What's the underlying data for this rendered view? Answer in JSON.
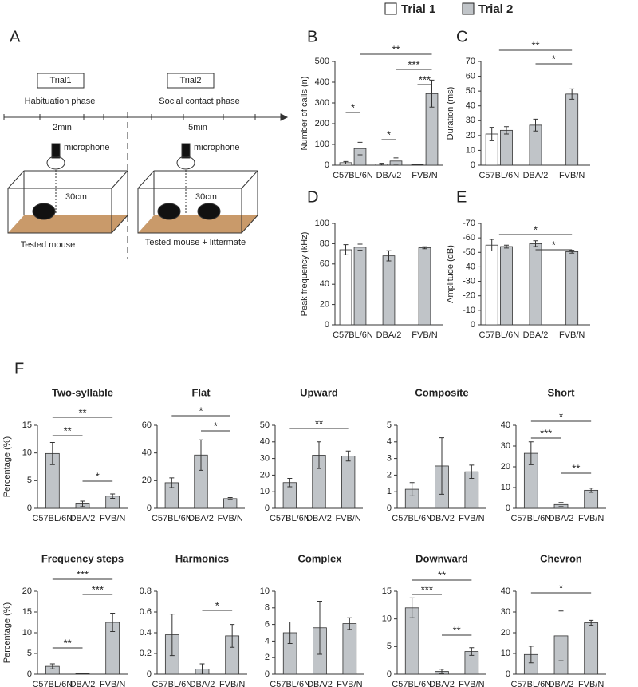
{
  "panel_a": {
    "letter": "A",
    "trial_1": "Trial1",
    "trial_2": "Trial2",
    "phase_1": "Habituation phase",
    "phase_2": "Social contact phase",
    "time_1": "2min",
    "time_2": "5min",
    "mic_1": "microphone",
    "mic_2": "microphone",
    "distance_1": "30cm",
    "distance_2": "30cm",
    "caption_1": "Tested mouse",
    "caption_2": "Tested mouse + littermate"
  },
  "panel_f": "F",
  "chart_data": [
    {
      "type": "bar",
      "panel": "B",
      "y_label": "Number of calls (n)",
      "categories": [
        "C57BL/6N",
        "DBA/2",
        "FVB/N"
      ],
      "series": [
        {
          "name": "Trial 1",
          "color": "#ffffff",
          "values": [
            12,
            5,
            3
          ],
          "errors": [
            6,
            4,
            2
          ]
        },
        {
          "name": "Trial 2",
          "color": "#c0c4c8",
          "values": [
            80,
            20,
            345
          ],
          "errors": [
            30,
            15,
            65
          ]
        }
      ],
      "ylim": [
        0,
        500
      ],
      "yticks": [
        0,
        100,
        200,
        300,
        400,
        500
      ],
      "annotations": [
        "**",
        "***",
        "***",
        "*",
        "*"
      ]
    },
    {
      "type": "bar",
      "panel": "C",
      "y_label": "Duration (ms)",
      "categories": [
        "C57BL/6N",
        "DBA/2",
        "FVB/N"
      ],
      "series": [
        {
          "name": "Trial 1",
          "color": "#ffffff",
          "values": [
            21,
            null,
            null
          ],
          "errors": [
            4.5,
            null,
            null
          ]
        },
        {
          "name": "Trial 2",
          "color": "#c0c4c8",
          "values": [
            23.5,
            27,
            48
          ],
          "errors": [
            2.5,
            4,
            3.5
          ]
        }
      ],
      "ylim": [
        0,
        70
      ],
      "yticks": [
        0,
        10,
        20,
        30,
        40,
        50,
        60,
        70
      ],
      "annotations": [
        "**",
        "*"
      ]
    },
    {
      "type": "bar",
      "panel": "D",
      "y_label": "Peak frequency (kHz)",
      "categories": [
        "C57BL/6N",
        "DBA/2",
        "FVB/N"
      ],
      "series": [
        {
          "name": "Trial 1",
          "color": "#ffffff",
          "values": [
            74,
            null,
            null
          ],
          "errors": [
            5,
            null,
            null
          ]
        },
        {
          "name": "Trial 2",
          "color": "#c0c4c8",
          "values": [
            76.5,
            68,
            76
          ],
          "errors": [
            3,
            5,
            1
          ]
        }
      ],
      "ylim": [
        0,
        100
      ],
      "yticks": [
        0,
        20,
        40,
        60,
        80,
        100
      ]
    },
    {
      "type": "bar",
      "panel": "E",
      "y_label": "Amplitude (dB)",
      "categories": [
        "C57BL/6N",
        "DBA/2",
        "FVB/N"
      ],
      "series": [
        {
          "name": "Trial 1",
          "color": "#ffffff",
          "values": [
            -55,
            null,
            null
          ],
          "errors": [
            4,
            null,
            null
          ]
        },
        {
          "name": "Trial 2",
          "color": "#c0c4c8",
          "values": [
            -54,
            -56,
            -50.5
          ],
          "errors": [
            1,
            2,
            1
          ]
        }
      ],
      "ylim": [
        0,
        -70
      ],
      "yticks": [
        0,
        -10,
        -20,
        -30,
        -40,
        -50,
        -60,
        -70
      ],
      "annotations": [
        "*",
        "*"
      ]
    },
    {
      "type": "bar",
      "title": "Two-syllable",
      "y_label": "Percentage (%)",
      "categories": [
        "C57BL/6N",
        "DBA/2",
        "FVB/N"
      ],
      "color": "#c0c4c8",
      "values": [
        9.9,
        0.8,
        2.2
      ],
      "errors": [
        2,
        0.5,
        0.4
      ],
      "ylim": [
        0,
        15
      ],
      "yticks": [
        0,
        5,
        10,
        15
      ],
      "annotations": [
        "**",
        "**",
        "*"
      ]
    },
    {
      "type": "bar",
      "title": "Flat",
      "categories": [
        "C57BL/6N",
        "DBA/2",
        "FVB/N"
      ],
      "color": "#c0c4c8",
      "values": [
        18.5,
        38.5,
        7
      ],
      "errors": [
        3.5,
        11,
        0.8
      ],
      "ylim": [
        0,
        60
      ],
      "yticks": [
        0,
        20,
        40,
        60
      ],
      "annotations": [
        "*",
        "*"
      ]
    },
    {
      "type": "bar",
      "title": "Upward",
      "categories": [
        "C57BL/6N",
        "DBA/2",
        "FVB/N"
      ],
      "color": "#c0c4c8",
      "values": [
        15.5,
        32,
        31.5
      ],
      "errors": [
        2.5,
        8,
        3
      ],
      "ylim": [
        0,
        50
      ],
      "yticks": [
        0,
        10,
        20,
        30,
        40,
        50
      ],
      "annotations": [
        "**"
      ]
    },
    {
      "type": "bar",
      "title": "Composite",
      "categories": [
        "C57BL/6N",
        "DBA/2",
        "FVB/N"
      ],
      "color": "#c0c4c8",
      "values": [
        1.15,
        2.55,
        2.2
      ],
      "errors": [
        0.4,
        1.7,
        0.4
      ],
      "ylim": [
        0,
        5
      ],
      "yticks": [
        0,
        1,
        2,
        3,
        4,
        5
      ]
    },
    {
      "type": "bar",
      "title": "Short",
      "categories": [
        "C57BL/6N",
        "DBA/2",
        "FVB/N"
      ],
      "color": "#c0c4c8",
      "values": [
        26.5,
        1.8,
        8.7
      ],
      "errors": [
        5.5,
        1,
        1
      ],
      "ylim": [
        0,
        40
      ],
      "yticks": [
        0,
        10,
        20,
        30,
        40
      ],
      "annotations": [
        "*",
        "***",
        "**"
      ]
    },
    {
      "type": "bar",
      "title": "Frequency steps",
      "y_label": "Percentage (%)",
      "categories": [
        "C57BL/6N",
        "DBA/2",
        "FVB/N"
      ],
      "color": "#c0c4c8",
      "values": [
        1.9,
        0.15,
        12.5
      ],
      "errors": [
        0.6,
        0.1,
        2.2
      ],
      "ylim": [
        0,
        20
      ],
      "yticks": [
        0,
        5,
        10,
        15,
        20
      ],
      "annotations": [
        "***",
        "***",
        "**"
      ]
    },
    {
      "type": "bar",
      "title": "Harmonics",
      "categories": [
        "C57BL/6N",
        "DBA/2",
        "FVB/N"
      ],
      "color": "#c0c4c8",
      "values": [
        0.38,
        0.05,
        0.37
      ],
      "errors": [
        0.2,
        0.05,
        0.11
      ],
      "ylim": [
        0,
        0.8
      ],
      "yticks": [
        0,
        0.2,
        0.4,
        0.6,
        0.8
      ],
      "annotations": [
        "*"
      ]
    },
    {
      "type": "bar",
      "title": "Complex",
      "categories": [
        "C57BL/6N",
        "DBA/2",
        "FVB/N"
      ],
      "color": "#c0c4c8",
      "values": [
        5,
        5.6,
        6.1
      ],
      "errors": [
        1.3,
        3.2,
        0.7
      ],
      "ylim": [
        0,
        10
      ],
      "yticks": [
        0,
        2,
        4,
        6,
        8,
        10
      ]
    },
    {
      "type": "bar",
      "title": "Downward",
      "categories": [
        "C57BL/6N",
        "DBA/2",
        "FVB/N"
      ],
      "color": "#c0c4c8",
      "values": [
        12,
        0.5,
        4.1
      ],
      "errors": [
        1.8,
        0.4,
        0.7
      ],
      "ylim": [
        0,
        15
      ],
      "yticks": [
        0,
        5,
        10,
        15
      ],
      "annotations": [
        "**",
        "***",
        "**"
      ]
    },
    {
      "type": "bar",
      "title": "Chevron",
      "categories": [
        "C57BL/6N",
        "DBA/2",
        "FVB/N"
      ],
      "color": "#c0c4c8",
      "values": [
        9.5,
        18.5,
        24.8
      ],
      "errors": [
        4,
        12,
        1.2
      ],
      "ylim": [
        0,
        40
      ],
      "yticks": [
        0,
        10,
        20,
        30,
        40
      ],
      "annotations": [
        "*"
      ]
    }
  ]
}
